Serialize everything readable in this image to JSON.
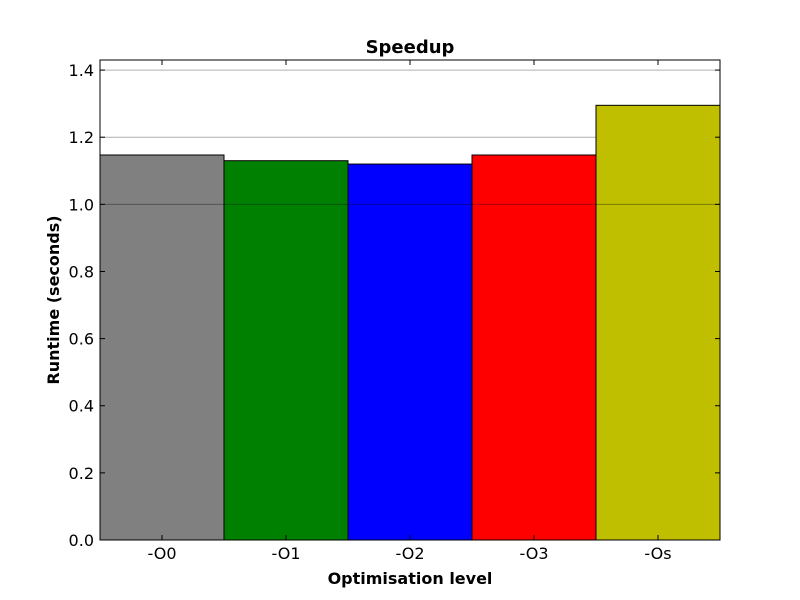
{
  "chart_data": {
    "type": "bar",
    "title": "Speedup",
    "xlabel": "Optimisation level",
    "ylabel": "Runtime (seconds)",
    "categories": [
      "-O0",
      "-O1",
      "-O2",
      "-O3",
      "-Os"
    ],
    "values": [
      1.147,
      1.13,
      1.12,
      1.147,
      1.295
    ],
    "colors": [
      "#808080",
      "#008000",
      "#0000ff",
      "#ff0000",
      "#bfbf00"
    ],
    "ylim": [
      0,
      1.43
    ],
    "yticks": [
      0.0,
      0.2,
      0.4,
      0.6,
      0.8,
      1.0,
      1.2,
      1.4
    ],
    "ytick_labels": [
      "0.0",
      "0.2",
      "0.4",
      "0.6",
      "0.8",
      "1.0",
      "1.2",
      "1.4"
    ],
    "grid": true
  }
}
